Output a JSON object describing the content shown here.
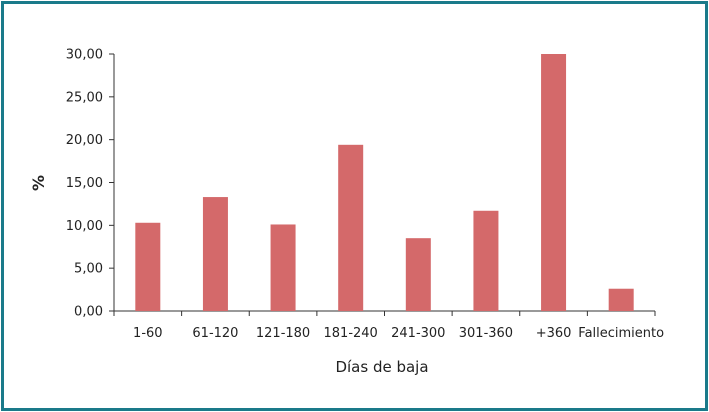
{
  "colors": {
    "frame": "#1a7a8a",
    "bar": "#d4696a",
    "axis": "#333333"
  },
  "chart_data": {
    "type": "bar",
    "title": "",
    "xlabel": "Días de baja",
    "ylabel": "%",
    "categories": [
      "1-60",
      "61-120",
      "121-180",
      "181-240",
      "241-300",
      "301-360",
      "+360",
      "Fallecimiento"
    ],
    "values": [
      10.3,
      13.3,
      10.1,
      19.4,
      8.5,
      11.7,
      30.0,
      2.6
    ],
    "ylim": [
      0,
      30
    ],
    "yticks": [
      0,
      5,
      10,
      15,
      20,
      25,
      30
    ],
    "ytick_labels": [
      "0,00",
      "5,00",
      "10,00",
      "15,00",
      "20,00",
      "25,00",
      "30,00"
    ],
    "grid": false,
    "legend": "none"
  }
}
